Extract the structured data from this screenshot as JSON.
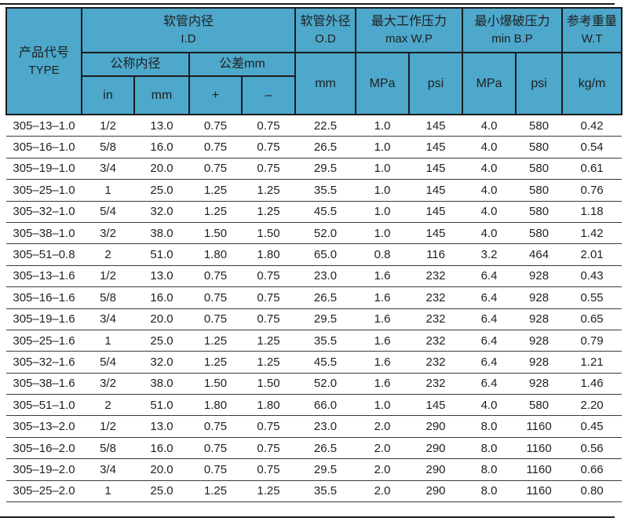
{
  "colors": {
    "header_bg": "#4da8cb",
    "border": "#1c1c1c",
    "row_line": "#3a3a3a",
    "text": "#1f1f1f",
    "row_bg": "#ffffff"
  },
  "header": {
    "type": {
      "zh": "产品代号",
      "en": "TYPE"
    },
    "id_group": {
      "zh": "软管内径",
      "en": "I.D"
    },
    "nominal_label": "公称内径",
    "tolerance_label": "公差mm",
    "sub": {
      "in": "in",
      "mm": "mm",
      "plus": "+",
      "minus": "–"
    },
    "od": {
      "zh": "软管外径",
      "en": "O.D",
      "unit": "mm"
    },
    "max_wp": {
      "zh": "最大工作压力",
      "en": "max W.P",
      "mpa": "MPa",
      "psi": "psi"
    },
    "min_bp": {
      "zh": "最小爆破压力",
      "en": "min B.P",
      "mpa": "MPa",
      "psi": "psi"
    },
    "wt": {
      "zh": "参考重量",
      "en": "W.T",
      "unit": "kg/m"
    }
  },
  "column_keys": [
    "type",
    "id_in",
    "id_mm",
    "tol_plus",
    "tol_minus",
    "od_mm",
    "wp_mpa",
    "wp_psi",
    "bp_mpa",
    "bp_psi",
    "wt_kgm"
  ],
  "rows": [
    [
      "305–13–1.0",
      "1/2",
      "13.0",
      "0.75",
      "0.75",
      "22.5",
      "1.0",
      "145",
      "4.0",
      "580",
      "0.42"
    ],
    [
      "305–16–1.0",
      "5/8",
      "16.0",
      "0.75",
      "0.75",
      "26.5",
      "1.0",
      "145",
      "4.0",
      "580",
      "0.54"
    ],
    [
      "305–19–1.0",
      "3/4",
      "20.0",
      "0.75",
      "0.75",
      "29.5",
      "1.0",
      "145",
      "4.0",
      "580",
      "0.61"
    ],
    [
      "305–25–1.0",
      "1",
      "25.0",
      "1.25",
      "1.25",
      "35.5",
      "1.0",
      "145",
      "4.0",
      "580",
      "0.76"
    ],
    [
      "305–32–1.0",
      "5/4",
      "32.0",
      "1.25",
      "1.25",
      "45.5",
      "1.0",
      "145",
      "4.0",
      "580",
      "1.18"
    ],
    [
      "305–38–1.0",
      "3/2",
      "38.0",
      "1.50",
      "1.50",
      "52.0",
      "1.0",
      "145",
      "4.0",
      "580",
      "1.42"
    ],
    [
      "305–51–0.8",
      "2",
      "51.0",
      "1.80",
      "1.80",
      "65.0",
      "0.8",
      "116",
      "3.2",
      "464",
      "2.01"
    ],
    [
      "305–13–1.6",
      "1/2",
      "13.0",
      "0.75",
      "0.75",
      "23.0",
      "1.6",
      "232",
      "6.4",
      "928",
      "0.43"
    ],
    [
      "305–16–1.6",
      "5/8",
      "16.0",
      "0.75",
      "0.75",
      "26.5",
      "1.6",
      "232",
      "6.4",
      "928",
      "0.55"
    ],
    [
      "305–19–1.6",
      "3/4",
      "20.0",
      "0.75",
      "0.75",
      "29.5",
      "1.6",
      "232",
      "6.4",
      "928",
      "0.65"
    ],
    [
      "305–25–1.6",
      "1",
      "25.0",
      "1.25",
      "1.25",
      "35.5",
      "1.6",
      "232",
      "6.4",
      "928",
      "0.79"
    ],
    [
      "305–32–1.6",
      "5/4",
      "32.0",
      "1.25",
      "1.25",
      "45.5",
      "1.6",
      "232",
      "6.4",
      "928",
      "1.21"
    ],
    [
      "305–38–1.6",
      "3/2",
      "38.0",
      "1.50",
      "1.50",
      "52.0",
      "1.6",
      "232",
      "6.4",
      "928",
      "1.46"
    ],
    [
      "305–51–1.0",
      "2",
      "51.0",
      "1.80",
      "1.80",
      "66.0",
      "1.0",
      "145",
      "4.0",
      "580",
      "2.20"
    ],
    [
      "305–13–2.0",
      "1/2",
      "13.0",
      "0.75",
      "0.75",
      "23.0",
      "2.0",
      "290",
      "8.0",
      "1160",
      "0.45"
    ],
    [
      "305–16–2.0",
      "5/8",
      "16.0",
      "0.75",
      "0.75",
      "26.5",
      "2.0",
      "290",
      "8.0",
      "1160",
      "0.56"
    ],
    [
      "305–19–2.0",
      "3/4",
      "20.0",
      "0.75",
      "0.75",
      "29.5",
      "2.0",
      "290",
      "8.0",
      "1160",
      "0.66"
    ],
    [
      "305–25–2.0",
      "1",
      "25.0",
      "1.25",
      "1.25",
      "35.5",
      "2.0",
      "290",
      "8.0",
      "1160",
      "0.80"
    ]
  ]
}
